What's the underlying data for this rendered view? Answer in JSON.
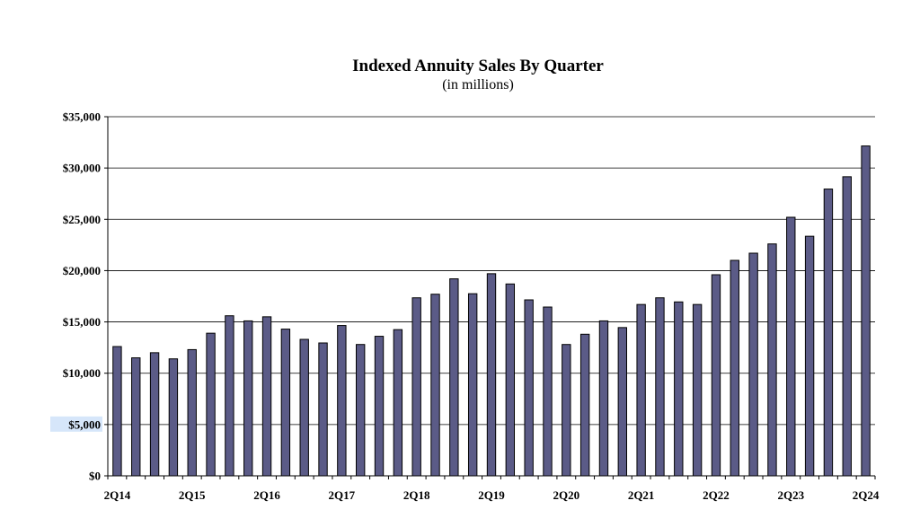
{
  "chart_data": {
    "type": "bar",
    "title": "Indexed Annuity Sales By Quarter",
    "subtitle": "(in millions)",
    "xlabel": "",
    "ylabel": "",
    "ylim": [
      0,
      35000
    ],
    "ytick_labels": [
      "$0",
      "$5,000",
      "$10,000",
      "$15,000",
      "$20,000",
      "$25,000",
      "$30,000",
      "$35,000"
    ],
    "xtick_labels": [
      "2Q14",
      "2Q15",
      "2Q16",
      "2Q17",
      "2Q18",
      "2Q19",
      "2Q20",
      "2Q21",
      "2Q22",
      "2Q23",
      "2Q24"
    ],
    "bar_color": "#5b5b87",
    "grid": true,
    "highlighted_tick": "$5,000",
    "categories": [
      "2Q14",
      "3Q14",
      "4Q14",
      "1Q15",
      "2Q15",
      "3Q15",
      "4Q15",
      "1Q16",
      "2Q16",
      "3Q16",
      "4Q16",
      "1Q17",
      "2Q17",
      "3Q17",
      "4Q17",
      "1Q18",
      "2Q18",
      "3Q18",
      "4Q18",
      "1Q19",
      "2Q19",
      "3Q19",
      "4Q19",
      "1Q20",
      "2Q20",
      "3Q20",
      "4Q20",
      "1Q21",
      "2Q21",
      "3Q21",
      "4Q21",
      "1Q22",
      "2Q22",
      "3Q22",
      "4Q22",
      "1Q23",
      "2Q23",
      "3Q23",
      "4Q23",
      "1Q24",
      "2Q24"
    ],
    "values": [
      12600,
      11500,
      12000,
      11400,
      12300,
      13900,
      15600,
      15100,
      15500,
      14300,
      13300,
      12950,
      14650,
      12800,
      13600,
      14250,
      17350,
      17700,
      19200,
      17750,
      19700,
      18700,
      17150,
      16450,
      12800,
      13800,
      15100,
      14450,
      16700,
      17350,
      16950,
      16700,
      19600,
      21000,
      21700,
      22600,
      25200,
      23350,
      27950,
      29150,
      32150
    ]
  }
}
